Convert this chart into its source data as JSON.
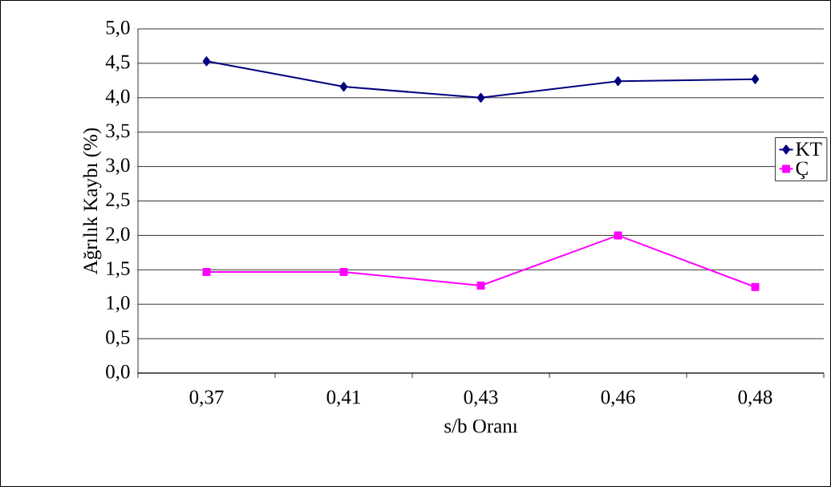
{
  "chart_data": {
    "type": "line",
    "xlabel": "s/b Oranı",
    "ylabel": "Ağrılık Kaybı (%)",
    "categories": [
      "0,37",
      "0,41",
      "0,43",
      "0,46",
      "0,48"
    ],
    "series": [
      {
        "name": "KT",
        "color": "#000080",
        "marker": "diamond",
        "values": [
          4.53,
          4.16,
          4.0,
          4.24,
          4.27
        ]
      },
      {
        "name": "Ç",
        "color": "#ff00ff",
        "marker": "square",
        "values": [
          1.47,
          1.47,
          1.27,
          2.0,
          1.25
        ]
      }
    ],
    "ylim": [
      0,
      5
    ],
    "yticks": [
      {
        "value": 0,
        "label": "0,0"
      },
      {
        "value": 0.5,
        "label": "0,5"
      },
      {
        "value": 1,
        "label": "1,0"
      },
      {
        "value": 1.5,
        "label": "1,5"
      },
      {
        "value": 2,
        "label": "2,0"
      },
      {
        "value": 2.5,
        "label": "2,5"
      },
      {
        "value": 3,
        "label": "3,0"
      },
      {
        "value": 3.5,
        "label": "3,5"
      },
      {
        "value": 4,
        "label": "4,0"
      },
      {
        "value": 4.5,
        "label": "4,5"
      },
      {
        "value": 5,
        "label": "5,0"
      }
    ],
    "grid": "y",
    "legend": "right",
    "line_style": "solid"
  }
}
